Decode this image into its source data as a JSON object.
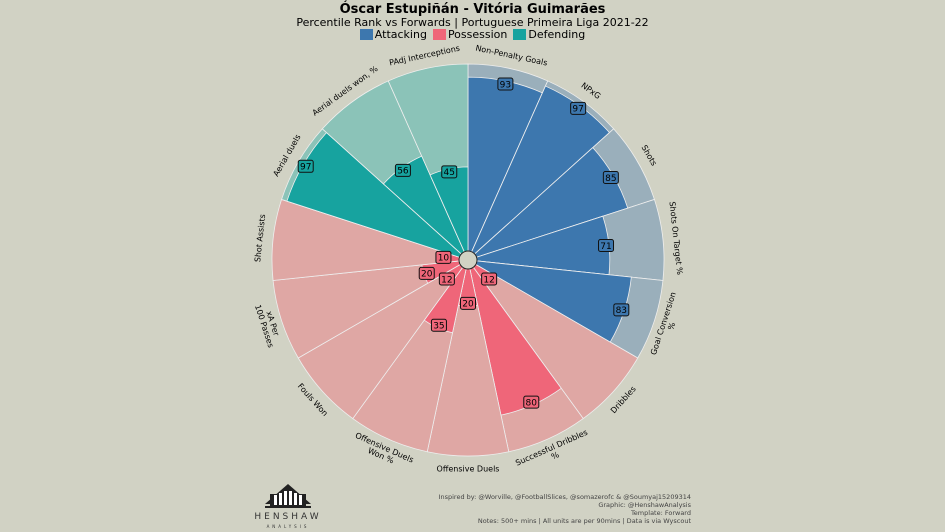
{
  "chart_data": {
    "type": "pizza",
    "title": "Óscar Estupiñán - Vitória Guimarães",
    "subtitle": "Percentile Rank vs Forwards | Portuguese Primeira Liga 2021-22",
    "legend": [
      {
        "name": "Attacking",
        "color": "#3d77ae"
      },
      {
        "name": "Possession",
        "color": "#ef6679"
      },
      {
        "name": "Defending",
        "color": "#17a39f"
      }
    ],
    "range": [
      0,
      100
    ],
    "params": [
      {
        "label": "Non-Penalty Goals",
        "value": 93,
        "category": "Attacking"
      },
      {
        "label": "NPxG",
        "value": 97,
        "category": "Attacking"
      },
      {
        "label": "Shots",
        "value": 85,
        "category": "Attacking"
      },
      {
        "label": "Shots On Target %",
        "value": 71,
        "category": "Attacking"
      },
      {
        "label": "Goal Conversion %",
        "value": 83,
        "category": "Attacking"
      },
      {
        "label": "Dribbles",
        "value": 12,
        "category": "Possession"
      },
      {
        "label": "Successful Dribbles %",
        "value": 80,
        "category": "Possession"
      },
      {
        "label": "Offensive Duels",
        "value": 20,
        "category": "Possession"
      },
      {
        "label": "Offensive Duels Won %",
        "value": 35,
        "category": "Possession"
      },
      {
        "label": "Fouls Won",
        "value": 12,
        "category": "Possession"
      },
      {
        "label": "xA Per 100 Passes",
        "value": 20,
        "category": "Possession"
      },
      {
        "label": "Shot Assists",
        "value": 10,
        "category": "Possession"
      },
      {
        "label": "Aerial duels",
        "value": 97,
        "category": "Defending"
      },
      {
        "label": "Aerial duels won, %",
        "value": 56,
        "category": "Defending"
      },
      {
        "label": "PAdj Interceptions",
        "value": 45,
        "category": "Defending"
      }
    ]
  },
  "logo": {
    "word": "HENSHAW",
    "sub": "ANALYSIS"
  },
  "footer": [
    "Inspired by: @Worville, @FootballSlices, @somazerofc & @Soumyaj15209314",
    "Graphic: @HenshawAnalysis",
    "Template: Forward",
    "Notes: 500+ mins | All units are per 90mins | Data is via Wyscout"
  ],
  "colors": {
    "background": "#d1d2c4",
    "attacking_bg": "#9aafbb",
    "possession_bg": "#dfa7a4",
    "defending_bg": "#8bc3b8"
  }
}
